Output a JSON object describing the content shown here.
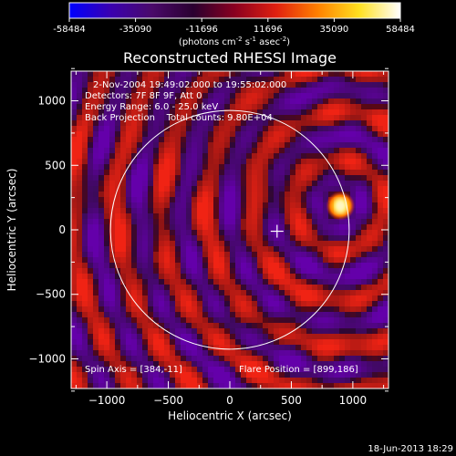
{
  "colorbar": {
    "ticks": [
      "-58484",
      "-35090",
      "-11696",
      "11696",
      "35090",
      "58484"
    ],
    "tick_values": [
      -58484,
      -35090,
      -11696,
      11696,
      35090,
      58484
    ],
    "range": [
      -58484,
      58484
    ],
    "unit_base": "(photons cm",
    "unit_sup1": "-2",
    "unit_mid": " s",
    "unit_sup2": "-1",
    "unit_end": " asec",
    "unit_sup3": "-2",
    "unit_close": ")",
    "colormap": [
      "#0000ff",
      "#3a00b0",
      "#4a0a6a",
      "#2a0030",
      "#8a0020",
      "#e02010",
      "#ff8000",
      "#ffe020",
      "#ffffff"
    ]
  },
  "chart_data": {
    "type": "heatmap",
    "title": "Reconstructed RHESSI Image",
    "xlabel": "Heliocentric X (arcsec)",
    "ylabel": "Heliocentric Y (arcsec)",
    "xlim": [
      -1290,
      1290
    ],
    "ylim": [
      -1230,
      1230
    ],
    "xticks": [
      -1000,
      -500,
      0,
      500,
      1000
    ],
    "yticks": [
      -1000,
      -500,
      0,
      500,
      1000
    ],
    "xtick_labels": [
      "−1000",
      "−500",
      "0",
      "500",
      "1000"
    ],
    "ytick_labels": [
      "−1000",
      "−500",
      "0",
      "500",
      "1000"
    ],
    "solar_limb": {
      "center": [
        0,
        0
      ],
      "radius_arcsec": 970
    },
    "cross_marker": [
      384,
      -11
    ],
    "flare_source": [
      899,
      186
    ],
    "annotations": {
      "time_range": "2-Nov-2004 19:49:02.000 to 19:55:02.000",
      "detectors": "Detectors: 7F 8F 9F, Att 0",
      "energy_range": "Energy Range: 6.0 - 25.0 keV",
      "method_counts": "Back Projection    Total counts: 9.80E+04",
      "spin_axis": "Spin Axis = [384,-11]",
      "flare_position": "Flare Position = [899,186]"
    }
  },
  "timestamp": "18-Jun-2013 18:29"
}
